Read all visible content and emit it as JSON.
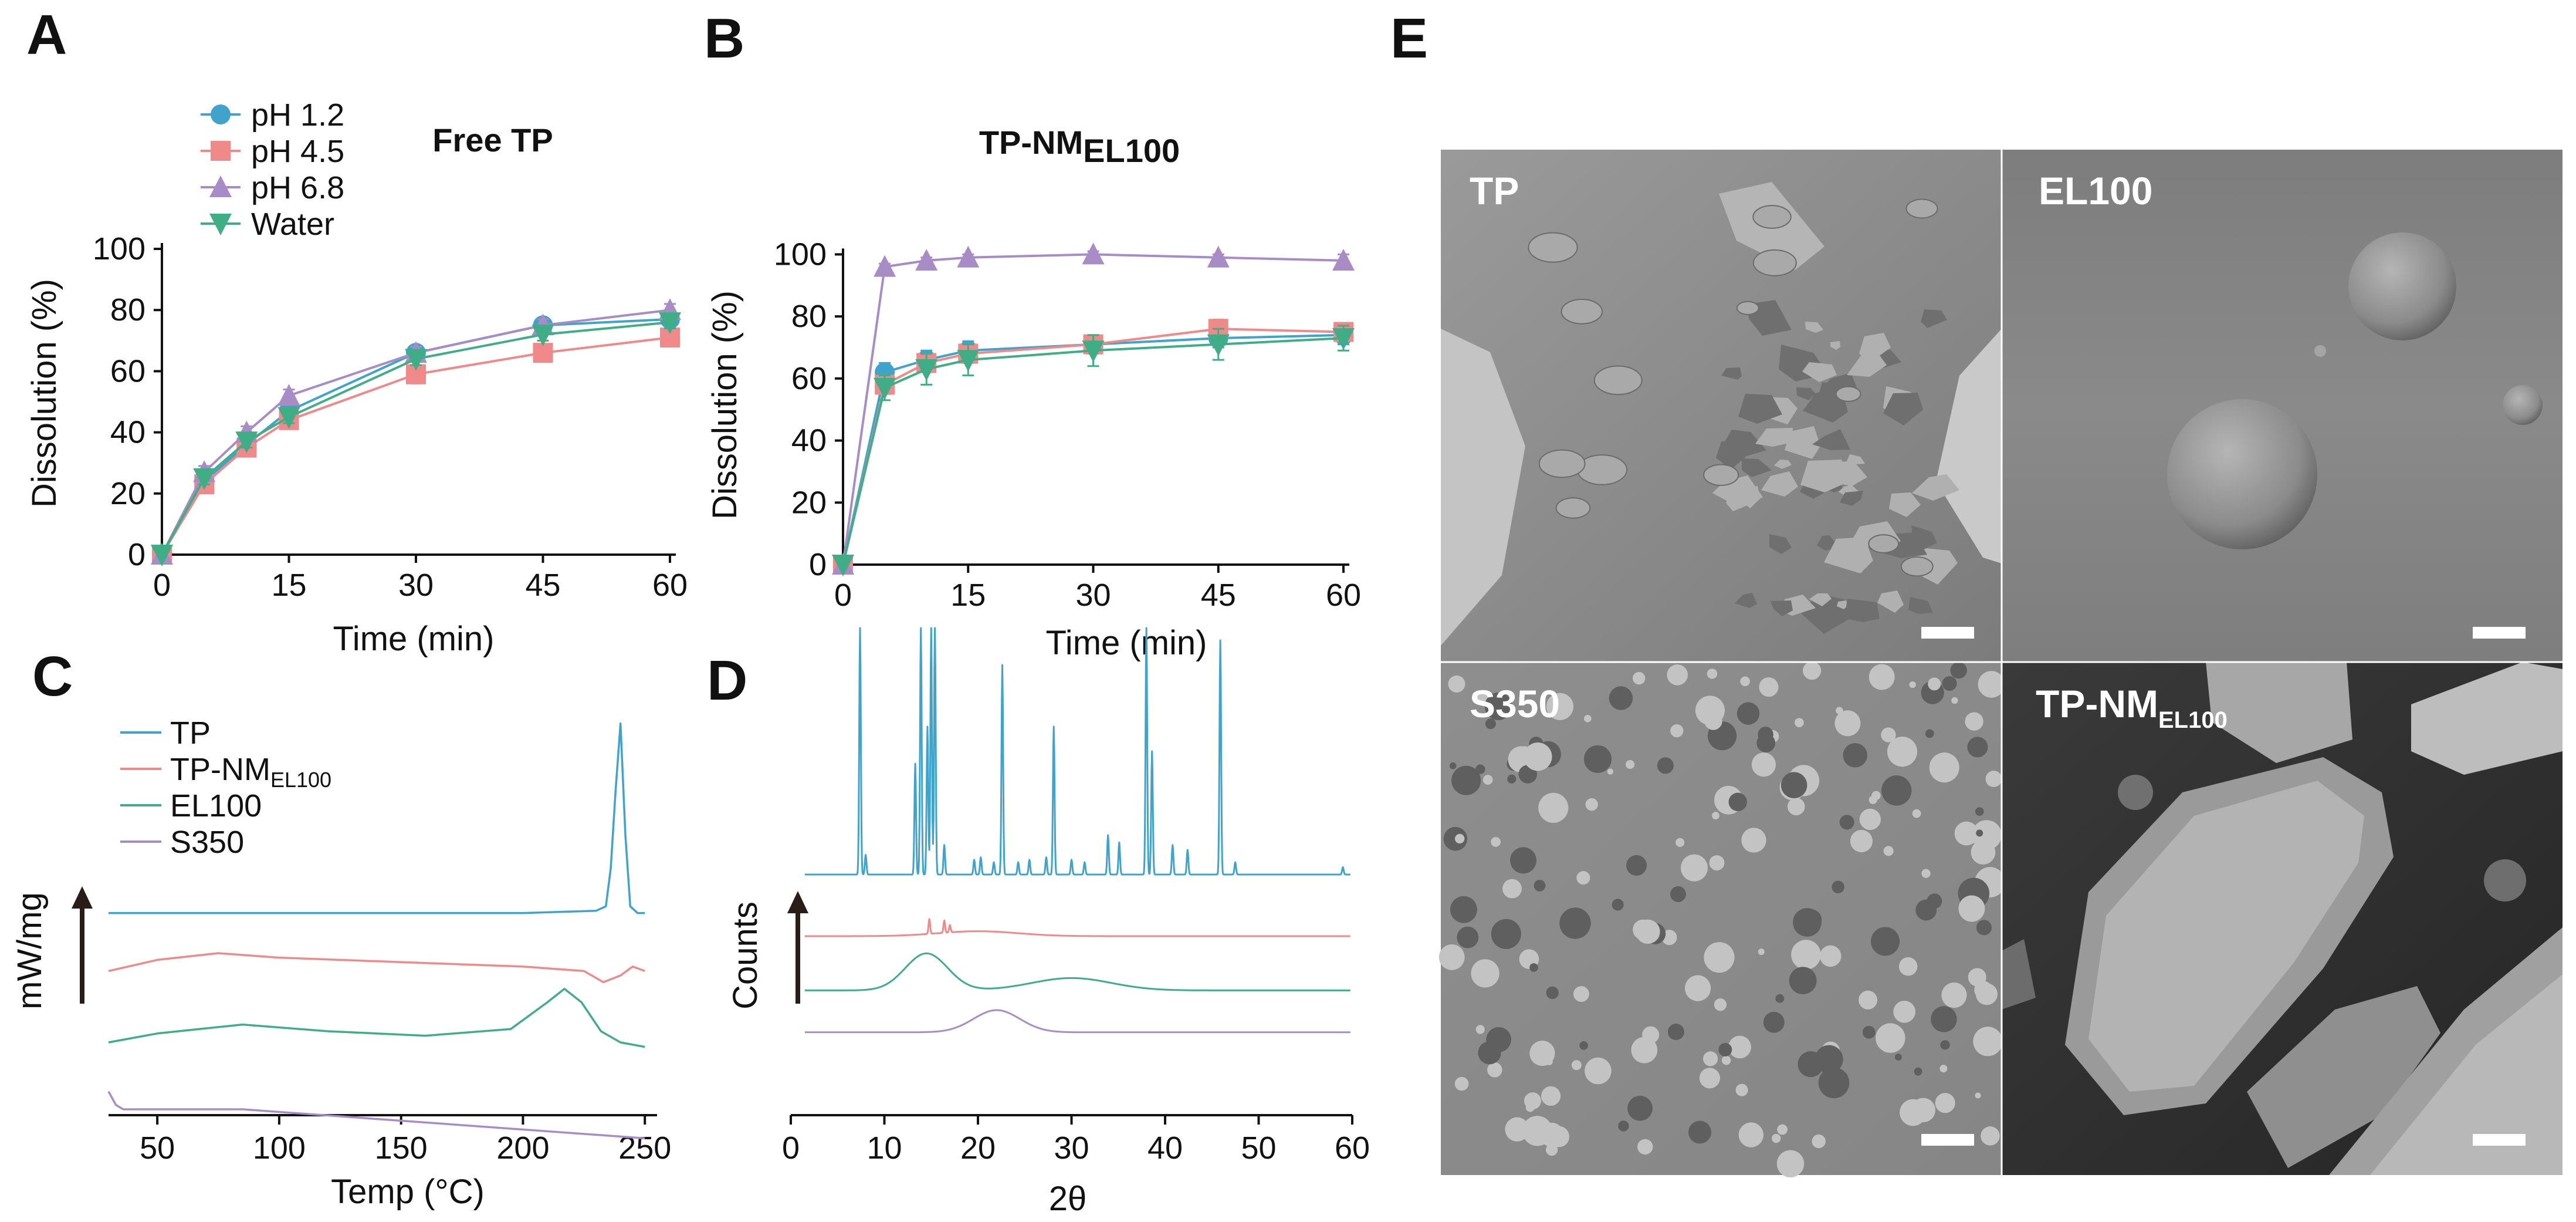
{
  "colors": {
    "blue": "#3fa3cc",
    "pink": "#f08a8a",
    "purple": "#a88cc6",
    "green": "#3fae86",
    "axis": "#111111",
    "sem_bg": "#8a8a8a"
  },
  "chart_data": [
    {
      "panel": "A",
      "type": "line",
      "title": "Free TP",
      "xlabel": "Time (min)",
      "ylabel": "Dissolution (%)",
      "x": [
        0,
        5,
        10,
        15,
        30,
        45,
        60
      ],
      "xticks": [
        0,
        15,
        30,
        45,
        60
      ],
      "yticks": [
        0,
        20,
        40,
        60,
        80,
        100
      ],
      "xlim": [
        0,
        60
      ],
      "ylim": [
        0,
        105
      ],
      "legend_position": "top-left",
      "series": [
        {
          "name": "pH 1.2",
          "color": "blue",
          "marker": "circle",
          "values": [
            0,
            24,
            36,
            47,
            66,
            75,
            77
          ],
          "errors": [
            0,
            2,
            2,
            2,
            2,
            2,
            2
          ]
        },
        {
          "name": "pH 4.5",
          "color": "pink",
          "marker": "square",
          "values": [
            0,
            23,
            35,
            44,
            59,
            66,
            71
          ],
          "errors": [
            0,
            2,
            2,
            2,
            3,
            2,
            2
          ]
        },
        {
          "name": "pH 6.8",
          "color": "purple",
          "marker": "triangle-up",
          "values": [
            0,
            27,
            40,
            52,
            66,
            75,
            80
          ],
          "errors": [
            0,
            2,
            2,
            2,
            2,
            2,
            2
          ]
        },
        {
          "name": "Water",
          "color": "green",
          "marker": "triangle-down",
          "values": [
            0,
            25,
            37,
            45,
            64,
            72,
            76
          ],
          "errors": [
            0,
            2,
            2,
            2,
            2,
            2,
            2
          ]
        }
      ]
    },
    {
      "panel": "B",
      "type": "line",
      "title": "TP-NM",
      "title_subscript": "EL100",
      "xlabel": "Time (min)",
      "ylabel": "Dissolution (%)",
      "x": [
        0,
        5,
        10,
        15,
        30,
        45,
        60
      ],
      "xticks": [
        0,
        15,
        30,
        45,
        60
      ],
      "yticks": [
        0,
        20,
        40,
        60,
        80,
        100
      ],
      "xlim": [
        0,
        60
      ],
      "ylim": [
        0,
        105
      ],
      "series": [
        {
          "name": "pH 1.2",
          "color": "blue",
          "marker": "circle",
          "values": [
            0,
            62,
            66,
            69,
            71,
            73,
            74
          ],
          "errors": [
            0,
            3,
            3,
            3,
            3,
            3,
            3
          ]
        },
        {
          "name": "pH 4.5",
          "color": "pink",
          "marker": "square",
          "values": [
            0,
            58,
            65,
            68,
            71,
            76,
            75
          ],
          "errors": [
            0,
            3,
            3,
            3,
            3,
            3,
            2
          ]
        },
        {
          "name": "pH 6.8",
          "color": "purple",
          "marker": "triangle-up",
          "values": [
            0,
            96,
            98,
            99,
            100,
            99,
            98
          ],
          "errors": [
            0,
            1,
            1,
            1,
            1,
            1,
            2
          ]
        },
        {
          "name": "Water",
          "color": "green",
          "marker": "triangle-down",
          "values": [
            0,
            57,
            63,
            66,
            69,
            71,
            73
          ],
          "errors": [
            0,
            4,
            5,
            5,
            5,
            5,
            4
          ]
        }
      ]
    },
    {
      "panel": "C",
      "type": "line",
      "title": "",
      "xlabel": "Temp (°C)",
      "ylabel": "mW/mg",
      "xticks": [
        50,
        100,
        150,
        200,
        250
      ],
      "xlim": [
        30,
        255
      ],
      "legend_position": "top-left",
      "series": [
        {
          "name": "TP",
          "color": "blue",
          "offset": 0.38,
          "x": [
            30,
            60,
            100,
            150,
            200,
            230,
            234,
            236,
            238,
            240,
            242,
            244,
            247,
            250
          ],
          "y": [
            0,
            0,
            0,
            0,
            0,
            0.01,
            0.03,
            0.2,
            0.55,
            0.85,
            0.35,
            0.03,
            0.0,
            0.0
          ]
        },
        {
          "name": "TP-NM",
          "subscript": "EL100",
          "color": "pink",
          "offset": 0.12,
          "x": [
            30,
            50,
            75,
            100,
            150,
            200,
            225,
            233,
            240,
            245,
            250
          ],
          "y": [
            0,
            0.05,
            0.08,
            0.06,
            0.04,
            0.02,
            0.0,
            -0.05,
            -0.02,
            0.02,
            0.0
          ]
        },
        {
          "name": "EL100",
          "color": "green",
          "offset": -0.2,
          "x": [
            30,
            50,
            85,
            120,
            160,
            195,
            210,
            217,
            224,
            232,
            240,
            250
          ],
          "y": [
            0,
            0.04,
            0.08,
            0.05,
            0.03,
            0.06,
            0.18,
            0.24,
            0.18,
            0.05,
            0.0,
            -0.02
          ]
        },
        {
          "name": "S350",
          "color": "purple",
          "offset": -0.48,
          "x": [
            30,
            33,
            36,
            85,
            250
          ],
          "y": [
            0.06,
            0.0,
            -0.02,
            -0.02,
            -0.15
          ]
        }
      ]
    },
    {
      "panel": "D",
      "type": "line",
      "title": "",
      "xlabel": "2θ",
      "ylabel": "Counts",
      "xticks": [
        0,
        10,
        20,
        30,
        40,
        50,
        60
      ],
      "xlim": [
        0,
        60
      ],
      "series": [
        {
          "name": "TP",
          "color": "blue",
          "offset": 0.5,
          "peaks": [
            [
              7.4,
              1.0
            ],
            [
              8.0,
              0.08
            ],
            [
              13.3,
              0.45
            ],
            [
              13.9,
              1.0
            ],
            [
              14.6,
              0.6
            ],
            [
              15.0,
              1.0
            ],
            [
              15.4,
              1.0
            ],
            [
              16.4,
              0.12
            ],
            [
              19.6,
              0.06
            ],
            [
              20.3,
              0.07
            ],
            [
              21.7,
              0.05
            ],
            [
              22.6,
              0.85
            ],
            [
              24.3,
              0.05
            ],
            [
              25.5,
              0.06
            ],
            [
              27.3,
              0.07
            ],
            [
              28.1,
              0.6
            ],
            [
              30.0,
              0.06
            ],
            [
              31.4,
              0.05
            ],
            [
              33.9,
              0.16
            ],
            [
              35.1,
              0.13
            ],
            [
              38.0,
              1.0
            ],
            [
              38.6,
              0.5
            ],
            [
              40.8,
              0.12
            ],
            [
              42.4,
              0.1
            ],
            [
              45.9,
              0.95
            ],
            [
              47.5,
              0.05
            ],
            [
              59.0,
              0.03
            ]
          ]
        },
        {
          "name": "TP-NM EL100",
          "color": "pink",
          "offset": 0.25,
          "peaks": [
            [
              14.8,
              0.06
            ],
            [
              16.4,
              0.05
            ],
            [
              17.0,
              0.03
            ]
          ],
          "halo": [
            [
              20.0,
              0.02,
              6
            ]
          ]
        },
        {
          "name": "EL100",
          "color": "green",
          "offset": 0.03,
          "halo": [
            [
              14.5,
              0.15,
              3.2
            ],
            [
              30.0,
              0.05,
              6
            ]
          ]
        },
        {
          "name": "S350",
          "color": "purple",
          "offset": -0.14,
          "halo": [
            [
              22.0,
              0.09,
              3.5
            ]
          ]
        }
      ]
    }
  ],
  "panels": {
    "A": {
      "letter": "A"
    },
    "B": {
      "letter": "B"
    },
    "C": {
      "letter": "C"
    },
    "D": {
      "letter": "D"
    },
    "E": {
      "letter": "E"
    }
  },
  "sem_images": [
    {
      "label": "TP",
      "subscript": "",
      "description_icon": "crystal-fragments"
    },
    {
      "label": "EL100",
      "subscript": "",
      "description_icon": "spherical-particles"
    },
    {
      "label": "S350",
      "subscript": "",
      "description_icon": "powder-clusters"
    },
    {
      "label": "TP-NM",
      "subscript": "EL100",
      "description_icon": "large-rough-particles"
    }
  ]
}
